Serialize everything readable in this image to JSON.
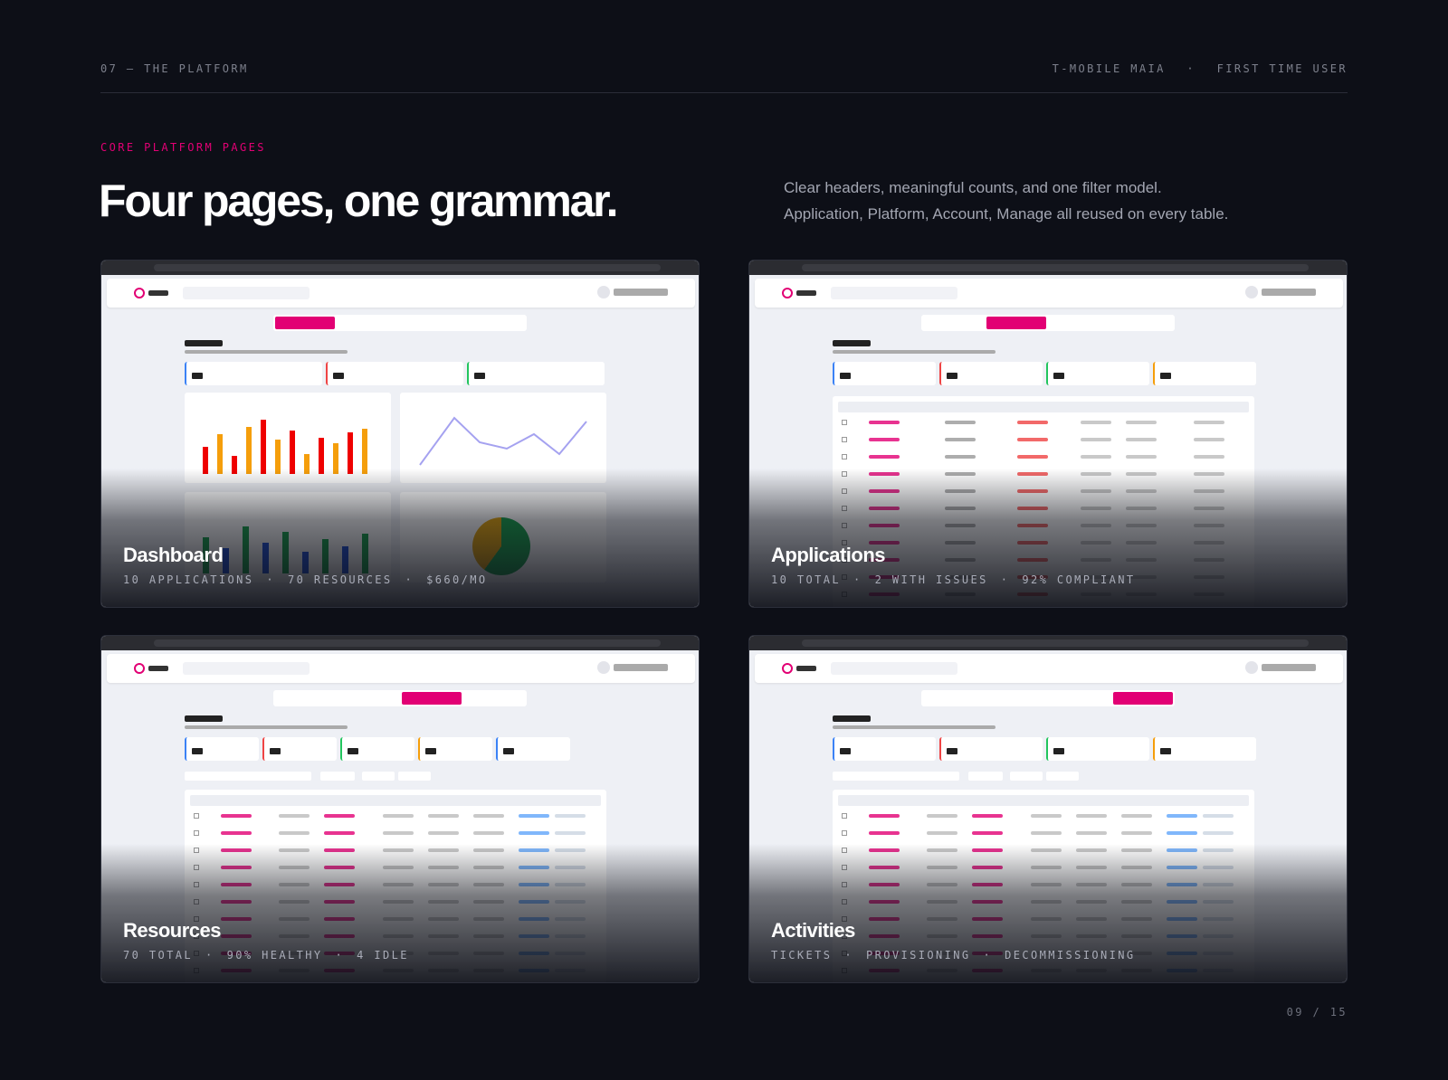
{
  "header": {
    "section": "07 — THE PLATFORM",
    "product": "T-MOBILE MAIA",
    "separator": "·",
    "audience": "FIRST TIME USER"
  },
  "kicker": "CORE PLATFORM PAGES",
  "title": "Four pages, one grammar.",
  "description": [
    "Clear headers, meaningful counts, and one filter model.",
    "Application, Platform, Account, Manage all reused on every table."
  ],
  "cards": [
    {
      "title": "Dashboard",
      "meta": [
        "10 APPLICATIONS",
        "70 RESOURCES",
        "$660/MO"
      ]
    },
    {
      "title": "Applications",
      "meta": [
        "10 TOTAL",
        "2 WITH ISSUES",
        "92% COMPLIANT"
      ]
    },
    {
      "title": "Resources",
      "meta": [
        "70 TOTAL",
        "90% HEALTHY",
        "4 IDLE"
      ]
    },
    {
      "title": "Activities",
      "meta": [
        "TICKETS",
        "PROVISIONING",
        "DECOMMISSIONING"
      ]
    }
  ],
  "pagination": "09 / 15"
}
